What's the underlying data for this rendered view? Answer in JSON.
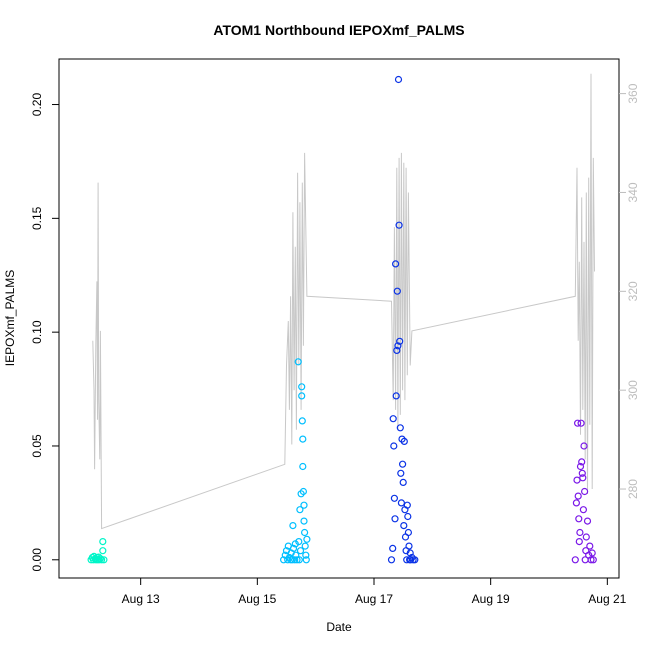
{
  "chart_data": {
    "type": "scatter",
    "title": "ATOM1 Northbound IEPOXmf_PALMS",
    "xlabel": "Date",
    "ylabel": "IEPOXmf_PALMS",
    "x_ticks": [
      "Aug 13",
      "Aug 15",
      "Aug 17",
      "Aug 19",
      "Aug 21"
    ],
    "x_tick_days": [
      13,
      15,
      17,
      19,
      21
    ],
    "xlim": [
      11.6,
      21.2
    ],
    "ylim": [
      -0.008,
      0.22
    ],
    "y_ticks": [
      "0.00",
      "0.05",
      "0.10",
      "0.15",
      "0.20"
    ],
    "y_tick_values": [
      0,
      0.05,
      0.1,
      0.15,
      0.2
    ],
    "y2lim": [
      262,
      367
    ],
    "y2_ticks": [
      "280",
      "300",
      "320",
      "340",
      "360"
    ],
    "y2_tick_values": [
      280,
      300,
      320,
      340,
      360
    ],
    "grid": false,
    "colors": {
      "series1": "#00f5c8",
      "series2": "#00bfff",
      "series3": "#0a32e6",
      "series4": "#7a18e8",
      "secondary_line": "#c8c8c8",
      "axis": "#000000",
      "right_axis": "#bdbdbd"
    },
    "series": [
      {
        "color": "series1",
        "points": [
          [
            12.15,
            0.0
          ],
          [
            12.17,
            0.001
          ],
          [
            12.19,
            0.0
          ],
          [
            12.2,
            0.0015
          ],
          [
            12.22,
            0.0005
          ],
          [
            12.23,
            0.0
          ],
          [
            12.25,
            0.001
          ],
          [
            12.26,
            0.0
          ],
          [
            12.28,
            0.0012
          ],
          [
            12.29,
            0.0
          ],
          [
            12.31,
            0.0005
          ],
          [
            12.33,
            0.0
          ],
          [
            12.35,
            0.008
          ],
          [
            12.35,
            0.004
          ],
          [
            12.37,
            0.0
          ]
        ]
      },
      {
        "color": "series2",
        "points": [
          [
            15.45,
            0.0
          ],
          [
            15.48,
            0.002
          ],
          [
            15.5,
            0.004
          ],
          [
            15.52,
            0.0
          ],
          [
            15.53,
            0.006
          ],
          [
            15.55,
            0.001
          ],
          [
            15.57,
            0.0
          ],
          [
            15.58,
            0.003
          ],
          [
            15.6,
            0.0
          ],
          [
            15.61,
            0.015
          ],
          [
            15.62,
            0.005
          ],
          [
            15.64,
            0.0
          ],
          [
            15.65,
            0.007
          ],
          [
            15.66,
            0.002
          ],
          [
            15.68,
            0.0
          ],
          [
            15.7,
            0.087
          ],
          [
            15.71,
            0.008
          ],
          [
            15.72,
            0.0
          ],
          [
            15.73,
            0.022
          ],
          [
            15.74,
            0.004
          ],
          [
            15.75,
            0.029
          ],
          [
            15.76,
            0.076
          ],
          [
            15.76,
            0.072
          ],
          [
            15.77,
            0.061
          ],
          [
            15.78,
            0.053
          ],
          [
            15.78,
            0.041
          ],
          [
            15.79,
            0.03
          ],
          [
            15.8,
            0.024
          ],
          [
            15.8,
            0.017
          ],
          [
            15.81,
            0.012
          ],
          [
            15.82,
            0.006
          ],
          [
            15.83,
            0.002
          ],
          [
            15.84,
            0.0
          ],
          [
            15.85,
            0.009
          ]
        ]
      },
      {
        "color": "series3",
        "points": [
          [
            17.3,
            0.0
          ],
          [
            17.32,
            0.005
          ],
          [
            17.33,
            0.062
          ],
          [
            17.34,
            0.05
          ],
          [
            17.35,
            0.027
          ],
          [
            17.36,
            0.018
          ],
          [
            17.37,
            0.13
          ],
          [
            17.38,
            0.072
          ],
          [
            17.39,
            0.092
          ],
          [
            17.4,
            0.118
          ],
          [
            17.41,
            0.094
          ],
          [
            17.42,
            0.211
          ],
          [
            17.43,
            0.147
          ],
          [
            17.44,
            0.096
          ],
          [
            17.45,
            0.058
          ],
          [
            17.46,
            0.038
          ],
          [
            17.47,
            0.025
          ],
          [
            17.48,
            0.053
          ],
          [
            17.49,
            0.042
          ],
          [
            17.5,
            0.034
          ],
          [
            17.51,
            0.015
          ],
          [
            17.52,
            0.052
          ],
          [
            17.53,
            0.022
          ],
          [
            17.54,
            0.01
          ],
          [
            17.55,
            0.004
          ],
          [
            17.56,
            0.0
          ],
          [
            17.57,
            0.024
          ],
          [
            17.58,
            0.019
          ],
          [
            17.59,
            0.012
          ],
          [
            17.6,
            0.006
          ],
          [
            17.61,
            0.0
          ],
          [
            17.62,
            0.003
          ],
          [
            17.63,
            0.0
          ],
          [
            17.65,
            0.001
          ],
          [
            17.67,
            0.0
          ],
          [
            17.7,
            0.0
          ]
        ]
      },
      {
        "color": "series4",
        "points": [
          [
            20.45,
            0.0
          ],
          [
            20.47,
            0.025
          ],
          [
            20.48,
            0.035
          ],
          [
            20.49,
            0.06
          ],
          [
            20.5,
            0.028
          ],
          [
            20.51,
            0.018
          ],
          [
            20.52,
            0.008
          ],
          [
            20.53,
            0.012
          ],
          [
            20.54,
            0.041
          ],
          [
            20.55,
            0.06
          ],
          [
            20.56,
            0.043
          ],
          [
            20.57,
            0.038
          ],
          [
            20.58,
            0.036
          ],
          [
            20.59,
            0.022
          ],
          [
            20.6,
            0.05
          ],
          [
            20.61,
            0.03
          ],
          [
            20.62,
            0.0
          ],
          [
            20.63,
            0.004
          ],
          [
            20.64,
            0.01
          ],
          [
            20.66,
            0.017
          ],
          [
            20.68,
            0.002
          ],
          [
            20.7,
            0.006
          ],
          [
            20.72,
            0.0
          ],
          [
            20.74,
            0.003
          ],
          [
            20.76,
            0.0
          ]
        ]
      }
    ],
    "secondary_line": {
      "axis": "right",
      "points": [
        [
          12.18,
          310
        ],
        [
          12.2,
          300
        ],
        [
          12.21,
          284
        ],
        [
          12.23,
          309
        ],
        [
          12.25,
          322
        ],
        [
          12.26,
          294
        ],
        [
          12.27,
          342
        ],
        [
          12.28,
          298
        ],
        [
          12.3,
          286
        ],
        [
          12.31,
          312
        ],
        [
          12.33,
          272
        ],
        [
          15.47,
          285
        ],
        [
          15.5,
          305
        ],
        [
          15.53,
          314
        ],
        [
          15.55,
          296
        ],
        [
          15.57,
          319
        ],
        [
          15.59,
          289
        ],
        [
          15.61,
          336
        ],
        [
          15.63,
          300
        ],
        [
          15.65,
          329
        ],
        [
          15.67,
          292
        ],
        [
          15.69,
          344
        ],
        [
          15.71,
          305
        ],
        [
          15.73,
          338
        ],
        [
          15.75,
          296
        ],
        [
          15.77,
          342
        ],
        [
          15.79,
          309
        ],
        [
          15.81,
          348
        ],
        [
          15.85,
          319
        ],
        [
          17.3,
          318
        ],
        [
          17.33,
          298
        ],
        [
          17.35,
          333
        ],
        [
          17.37,
          296
        ],
        [
          17.39,
          345
        ],
        [
          17.41,
          292
        ],
        [
          17.43,
          347
        ],
        [
          17.45,
          295
        ],
        [
          17.47,
          348
        ],
        [
          17.49,
          300
        ],
        [
          17.51,
          346
        ],
        [
          17.53,
          298
        ],
        [
          17.55,
          345
        ],
        [
          17.57,
          303
        ],
        [
          17.59,
          340
        ],
        [
          17.62,
          305
        ],
        [
          17.65,
          312
        ],
        [
          20.45,
          319
        ],
        [
          20.48,
          345
        ],
        [
          20.5,
          310
        ],
        [
          20.52,
          326
        ],
        [
          20.54,
          291
        ],
        [
          20.56,
          339
        ],
        [
          20.58,
          296
        ],
        [
          20.6,
          330
        ],
        [
          20.62,
          286
        ],
        [
          20.64,
          340
        ],
        [
          20.66,
          279
        ],
        [
          20.68,
          343
        ],
        [
          20.7,
          293
        ],
        [
          20.72,
          364
        ],
        [
          20.74,
          280
        ],
        [
          20.76,
          347
        ],
        [
          20.78,
          324
        ]
      ]
    }
  }
}
